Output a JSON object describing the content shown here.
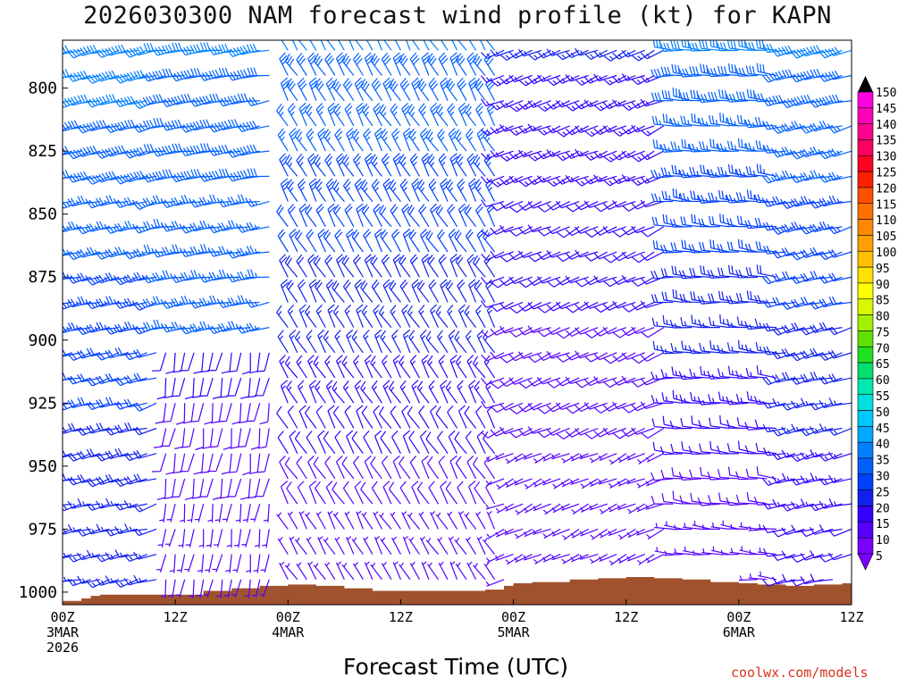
{
  "chart_data": {
    "type": "wind_barbs_time_height",
    "title": "2026030300 NAM forecast wind profile (kt) for KAPN",
    "xlabel": "Forecast Time (UTC)",
    "ylabel": "",
    "credit": "coolwx.com/models",
    "x_range_hours": [
      0,
      84
    ],
    "y_range_hpa": [
      1005,
      781
    ],
    "x_ticks": [
      {
        "hour": 0,
        "lines": [
          "00Z",
          "3MAR",
          "2026"
        ]
      },
      {
        "hour": 12,
        "lines": [
          "12Z"
        ]
      },
      {
        "hour": 24,
        "lines": [
          "00Z",
          "4MAR"
        ]
      },
      {
        "hour": 36,
        "lines": [
          "12Z"
        ]
      },
      {
        "hour": 48,
        "lines": [
          "00Z",
          "5MAR"
        ]
      },
      {
        "hour": 60,
        "lines": [
          "12Z"
        ]
      },
      {
        "hour": 72,
        "lines": [
          "00Z",
          "6MAR"
        ]
      },
      {
        "hour": 84,
        "lines": [
          "12Z"
        ]
      }
    ],
    "y_ticks": [
      "800",
      "825",
      "850",
      "875",
      "900",
      "925",
      "950",
      "975",
      "1000"
    ],
    "pressure_levels": [
      785,
      795,
      805,
      815,
      825,
      835,
      845,
      855,
      865,
      875,
      885,
      895,
      905,
      915,
      925,
      935,
      945,
      955,
      965,
      975,
      985,
      995
    ],
    "hours": [
      0,
      1,
      2,
      3,
      4,
      5,
      6,
      7,
      8,
      9,
      10,
      11,
      12,
      13,
      14,
      15,
      16,
      17,
      18,
      19,
      20,
      21,
      22,
      24,
      25,
      26,
      27,
      28,
      29,
      30,
      31,
      32,
      33,
      34,
      35,
      36,
      37,
      38,
      39,
      40,
      41,
      42,
      43,
      44,
      45,
      46,
      47,
      48,
      49,
      50,
      51,
      52,
      53,
      54,
      55,
      56,
      57,
      58,
      59,
      60,
      61,
      62,
      63,
      64,
      65,
      66,
      67,
      68,
      69,
      70,
      71,
      72,
      73,
      74,
      75,
      76,
      77,
      78,
      79,
      80,
      81,
      82,
      83,
      84
    ],
    "surface_pressure": {
      "hours": [
        0,
        2,
        3,
        4,
        6,
        9,
        12,
        15,
        18,
        21,
        24,
        27,
        30,
        33,
        36,
        39,
        42,
        45,
        47,
        48,
        50,
        54,
        57,
        60,
        63,
        66,
        69,
        72,
        74,
        77,
        80,
        83,
        84
      ],
      "hpa": [
        1003.5,
        1002.5,
        1001.5,
        1001.0,
        1001.0,
        1001.0,
        1001.0,
        999.5,
        998.5,
        997.5,
        997.0,
        997.5,
        998.5,
        999.5,
        999.5,
        999.5,
        999.5,
        999.0,
        997.5,
        996.5,
        996.0,
        995.0,
        994.5,
        994.0,
        994.5,
        995.0,
        996.0,
        996.5,
        997.0,
        997.5,
        997.0,
        996.5,
        996.0
      ]
    },
    "colorbar": {
      "labels": [
        "5",
        "10",
        "15",
        "20",
        "25",
        "30",
        "35",
        "40",
        "45",
        "50",
        "55",
        "60",
        "65",
        "70",
        "75",
        "80",
        "85",
        "90",
        "95",
        "100",
        "105",
        "110",
        "115",
        "120",
        "125",
        "130",
        "135",
        "140",
        "145",
        "150"
      ],
      "colors": [
        "#7a00ff",
        "#5500ff",
        "#3300ff",
        "#1020ee",
        "#0040ff",
        "#0060ff",
        "#0080ff",
        "#00a8ff",
        "#00c8ff",
        "#00e0e0",
        "#00e8b0",
        "#00e070",
        "#20e020",
        "#60e000",
        "#a0f000",
        "#d8f800",
        "#ffff00",
        "#ffe000",
        "#ffc000",
        "#ffa000",
        "#ff8800",
        "#ff7000",
        "#ff5000",
        "#ff2000",
        "#ff0020",
        "#ff0060",
        "#ff0090",
        "#ff00b8",
        "#ff00e0"
      ]
    },
    "wind_regimes": [
      {
        "hours": [
          0,
          10
        ],
        "levels": [
          785,
          995
        ],
        "direction_deg": 255,
        "speed_kt": [
          15,
          32
        ]
      },
      {
        "hours": [
          10,
          22
        ],
        "levels": [
          785,
          895
        ],
        "direction_deg": 260,
        "speed_kt": [
          25,
          30
        ]
      },
      {
        "hours": [
          10,
          22
        ],
        "levels": [
          895,
          995
        ],
        "direction_deg": 190,
        "speed_kt": [
          5,
          12
        ]
      },
      {
        "hours": [
          24,
          46
        ],
        "levels": [
          785,
          995
        ],
        "direction_deg": 330,
        "speed_kt": [
          5,
          30
        ]
      },
      {
        "hours": [
          46,
          64
        ],
        "levels": [
          785,
          995
        ],
        "direction_deg": 245,
        "speed_kt": [
          5,
          15
        ]
      },
      {
        "hours": [
          64,
          76
        ],
        "levels": [
          785,
          995
        ],
        "direction_deg": 275,
        "speed_kt": [
          5,
          30
        ]
      },
      {
        "hours": [
          76,
          84
        ],
        "levels": [
          785,
          995
        ],
        "direction_deg": 255,
        "speed_kt": [
          10,
          30
        ]
      }
    ]
  }
}
